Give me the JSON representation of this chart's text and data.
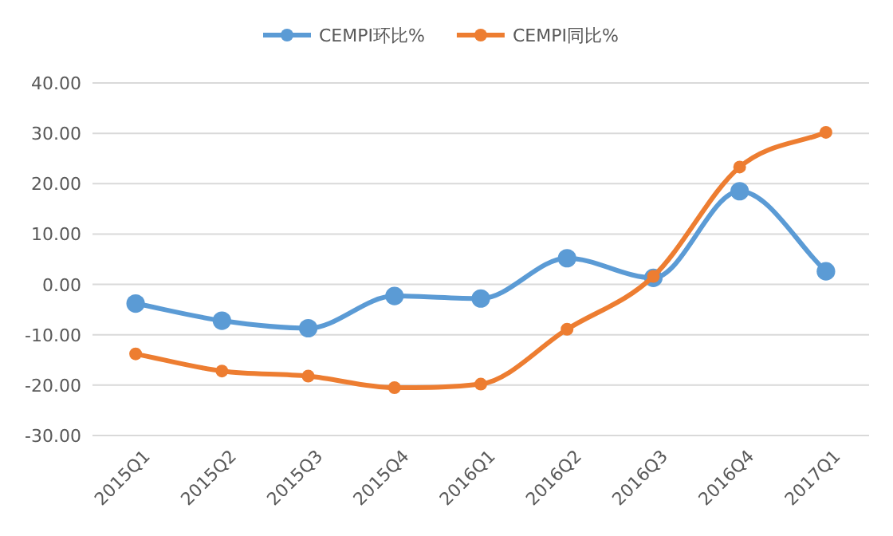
{
  "chart_data": {
    "type": "line",
    "categories": [
      "2015Q1",
      "2015Q2",
      "2015Q3",
      "2015Q4",
      "2016Q1",
      "2016Q2",
      "2016Q3",
      "2016Q4",
      "2017Q1"
    ],
    "series": [
      {
        "name": "CEMPI环比%",
        "color": "#5b9bd5",
        "values": [
          -3.8,
          -7.2,
          -8.7,
          -2.3,
          -2.8,
          5.2,
          1.3,
          18.5,
          2.6
        ]
      },
      {
        "name": "CEMPI同比%",
        "color": "#ed7d31",
        "values": [
          -13.8,
          -17.2,
          -18.2,
          -20.5,
          -19.8,
          -8.9,
          1.6,
          23.3,
          30.2
        ]
      }
    ],
    "ylim": [
      -30,
      40
    ],
    "yticks": [
      {
        "value": -30,
        "label": "-30.00"
      },
      {
        "value": -20,
        "label": "-20.00"
      },
      {
        "value": -10,
        "label": "-10.00"
      },
      {
        "value": 0,
        "label": "0.00"
      },
      {
        "value": 10,
        "label": "10.00"
      },
      {
        "value": 20,
        "label": "20.00"
      },
      {
        "value": 30,
        "label": "30.00"
      },
      {
        "value": 40,
        "label": "40.00"
      }
    ],
    "grid": "y",
    "legend": "top",
    "marker": "circle",
    "line_style": "solid"
  }
}
